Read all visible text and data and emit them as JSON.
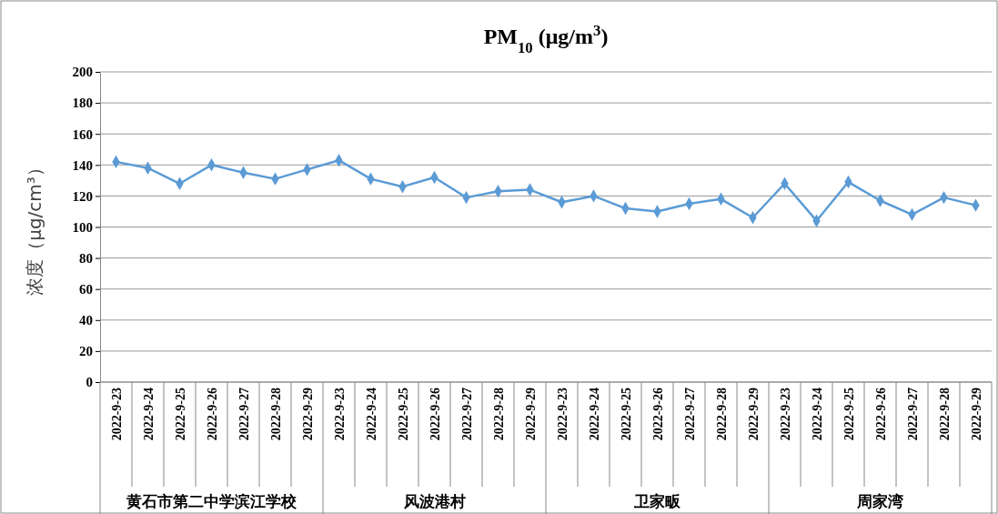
{
  "chart_data": {
    "type": "line",
    "title": "PM$_{10}$ (μg/m$^{3}$)",
    "ylabel": "浓度（μg/cm³）",
    "categories": [
      "2022-9-23",
      "2022-9-24",
      "2022-9-25",
      "2022-9-26",
      "2022-9-27",
      "2022-9-28",
      "2022-9-29",
      "2022-9-23",
      "2022-9-24",
      "2022-9-25",
      "2022-9-26",
      "2022-9-27",
      "2022-9-28",
      "2022-9-29",
      "2022-9-23",
      "2022-9-24",
      "2022-9-25",
      "2022-9-26",
      "2022-9-27",
      "2022-9-28",
      "2022-9-29",
      "2022-9-23",
      "2022-9-24",
      "2022-9-25",
      "2022-9-26",
      "2022-9-27",
      "2022-9-28",
      "2022-9-29"
    ],
    "series": [
      {
        "color": "#5b9bd5",
        "values": [
          142,
          138,
          128,
          140,
          135,
          131,
          137,
          143,
          131,
          126,
          132,
          119,
          123,
          124,
          116,
          120,
          112,
          110,
          115,
          118,
          106,
          128,
          104,
          129,
          117,
          108,
          119,
          114
        ]
      }
    ],
    "annotations": [
      "黄石市第二中学滨江学校",
      "风波港村",
      "卫家畈",
      "周家湾"
    ],
    "ylim": [
      0,
      200
    ],
    "yticks": [
      0,
      20,
      40,
      60,
      80,
      100,
      120,
      140,
      160,
      180,
      200
    ],
    "grid": "y",
    "marker": "diamond",
    "line_style": "solid"
  }
}
